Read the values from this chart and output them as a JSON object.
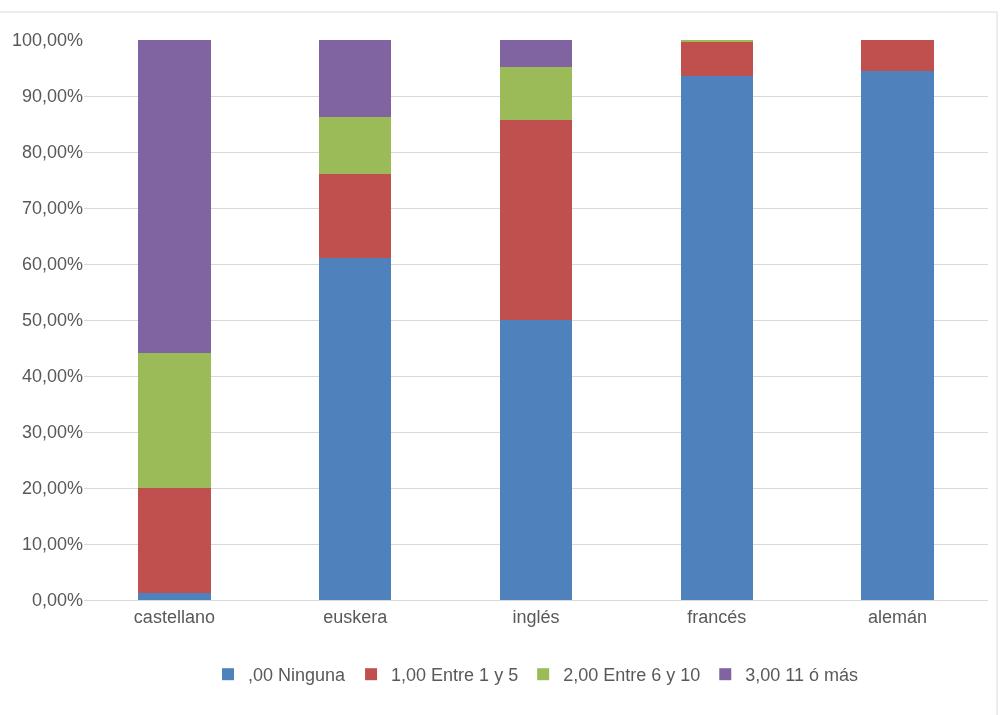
{
  "chart_data": {
    "type": "bar",
    "stacked": true,
    "categories": [
      "castellano",
      "euskera",
      "inglés",
      "francés",
      "alemán"
    ],
    "series": [
      {
        "name": ",00 Ninguna",
        "color": "#4f81bd",
        "values": [
          1.3,
          61.0,
          50.0,
          93.6,
          94.4
        ]
      },
      {
        "name": "1,00 Entre 1 y 5",
        "color": "#c0504d",
        "values": [
          18.7,
          15.1,
          35.8,
          6.2,
          5.6
        ]
      },
      {
        "name": "2,00 Entre 6 y 10",
        "color": "#9bbb59",
        "values": [
          24.1,
          10.2,
          9.4,
          0.2,
          0
        ]
      },
      {
        "name": "3,00 11 ó más",
        "color": "#8064a2",
        "values": [
          55.9,
          13.7,
          4.8,
          0,
          0
        ]
      }
    ],
    "ylim": [
      0,
      100
    ],
    "yticks": [
      {
        "value": 0,
        "label": "0,00%"
      },
      {
        "value": 10,
        "label": "10,00%"
      },
      {
        "value": 20,
        "label": "20,00%"
      },
      {
        "value": 30,
        "label": "30,00%"
      },
      {
        "value": 40,
        "label": "40,00%"
      },
      {
        "value": 50,
        "label": "50,00%"
      },
      {
        "value": 60,
        "label": "60,00%"
      },
      {
        "value": 70,
        "label": "70,00%"
      },
      {
        "value": 80,
        "label": "80,00%"
      },
      {
        "value": 90,
        "label": "90,00%"
      },
      {
        "value": 100,
        "label": "100,00%"
      }
    ],
    "grid": "y",
    "legend": "bottom"
  }
}
